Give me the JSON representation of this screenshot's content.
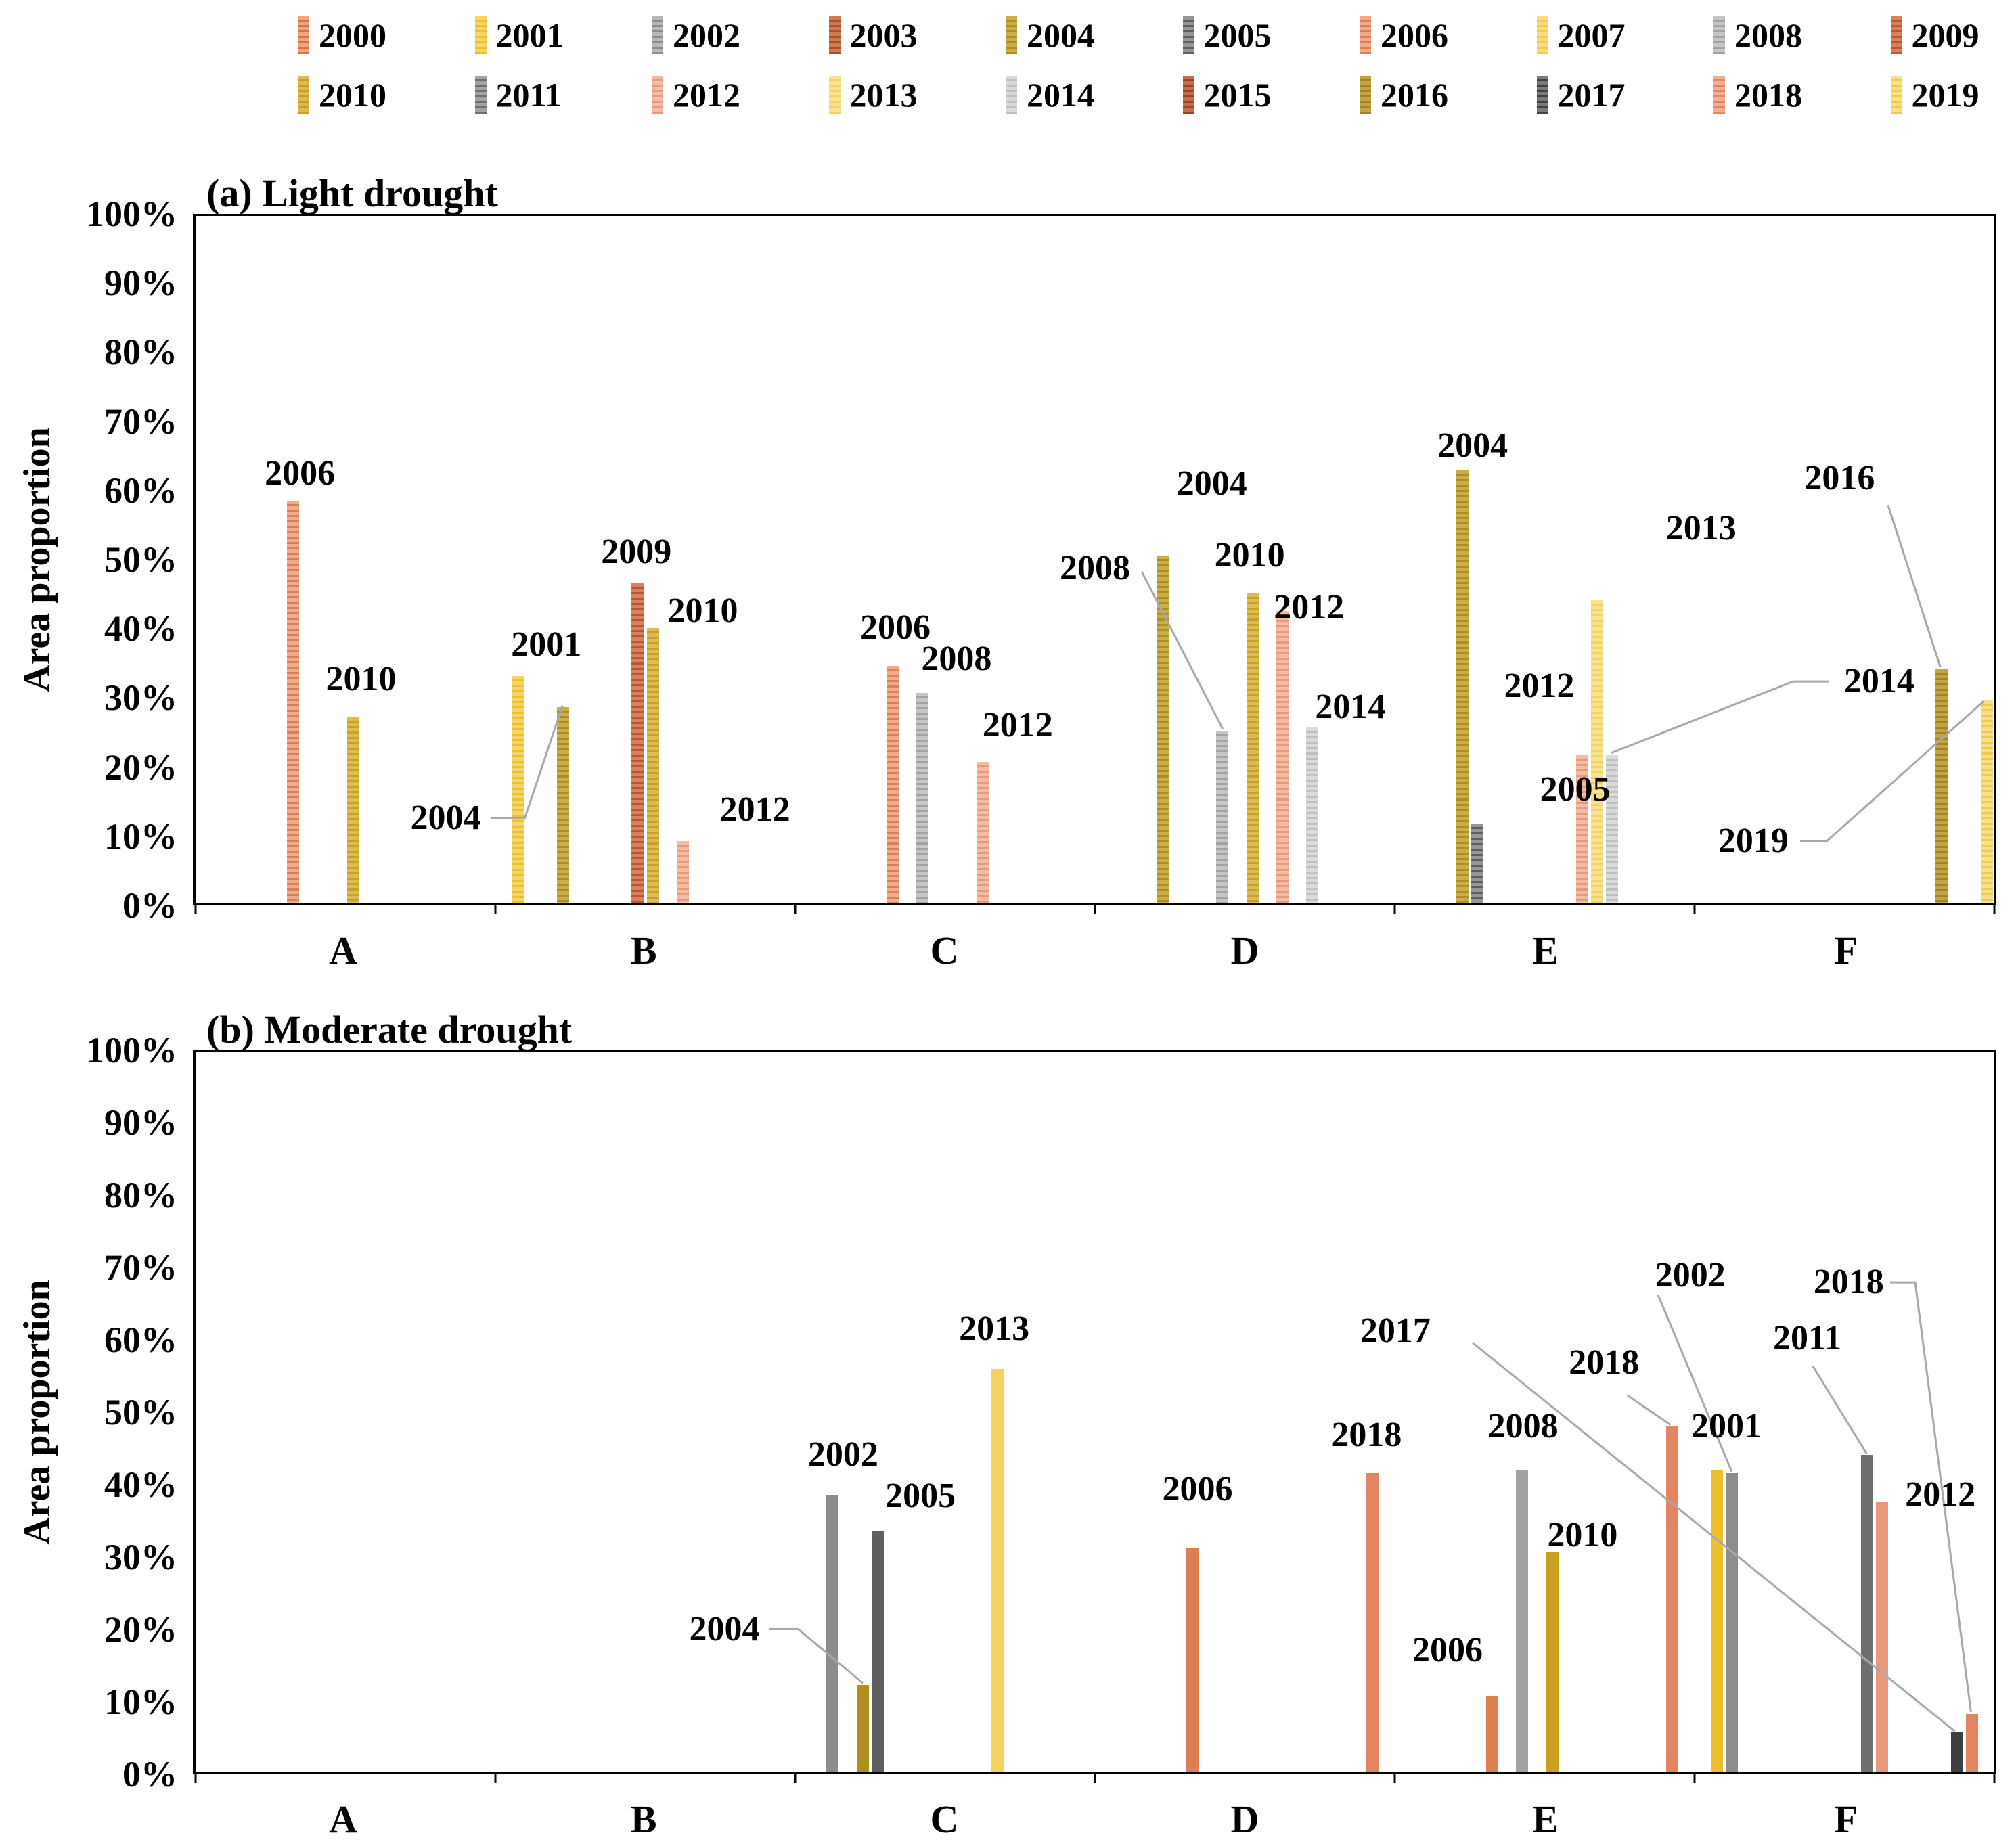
{
  "figure": {
    "background": "#FFFFFF",
    "axis_color": "#000000",
    "callout_line_color": "#A8A8A8",
    "text_color": "#000000"
  },
  "legend": {
    "rows": [
      [
        "2000",
        "2001",
        "2002",
        "2003",
        "2004",
        "2005",
        "2006",
        "2007",
        "2008",
        "2009"
      ],
      [
        "2010",
        "2011",
        "2012",
        "2013",
        "2014",
        "2015",
        "2016",
        "2017",
        "2018",
        "2019"
      ]
    ]
  },
  "palette": {
    "2000": {
      "fill": "#D96F43",
      "tint": "#ECA87E"
    },
    "2001": {
      "fill": "#EEBE2E",
      "tint": "#F6D569"
    },
    "2002": {
      "fill": "#8C8C8C",
      "tint": "#B9B9B9"
    },
    "2003": {
      "fill": "#AC4E28",
      "tint": "#CC7B54"
    },
    "2004": {
      "fill": "#B08E1E",
      "tint": "#CBAE4C"
    },
    "2005": {
      "fill": "#5F5F5F",
      "tint": "#969696"
    },
    "2006": {
      "fill": "#DD7E53",
      "tint": "#F0AC8B"
    },
    "2007": {
      "fill": "#F3CA4E",
      "tint": "#F8DD85"
    },
    "2008": {
      "fill": "#A2A2A2",
      "tint": "#C6C6C6"
    },
    "2009": {
      "fill": "#BC5530",
      "tint": "#D8825D"
    },
    "2010": {
      "fill": "#C9A01F",
      "tint": "#DDBC55"
    },
    "2011": {
      "fill": "#6F6F6F",
      "tint": "#A3A3A3"
    },
    "2012": {
      "fill": "#E8997B",
      "tint": "#F3BCA4"
    },
    "2013": {
      "fill": "#F5D15E",
      "tint": "#F9E294"
    },
    "2014": {
      "fill": "#BFBFBF",
      "tint": "#DADADA"
    },
    "2015": {
      "fill": "#9C4423",
      "tint": "#C26E48"
    },
    "2016": {
      "fill": "#A3831A",
      "tint": "#C1A448"
    },
    "2017": {
      "fill": "#3F3F3F",
      "tint": "#7A7A7A"
    },
    "2018": {
      "fill": "#E28560",
      "tint": "#F0B093"
    },
    "2019": {
      "fill": "#F0CB4A",
      "tint": "#F7DF8C"
    }
  },
  "chart_data": [
    {
      "type": "bar",
      "panel": "a",
      "title": "(a) Light drought",
      "ylabel": "Area proportion",
      "categories": [
        "A",
        "B",
        "C",
        "D",
        "E",
        "F"
      ],
      "ylim": [
        0,
        100
      ],
      "yticks": [
        "100%",
        "90%",
        "80%",
        "70%",
        "60%",
        "50%",
        "40%",
        "30%",
        "20%",
        "10%",
        "0%"
      ],
      "grid": false,
      "bar_style": "striped",
      "bars": [
        {
          "category": "A",
          "year": "2006",
          "value": 58.5
        },
        {
          "category": "A",
          "year": "2010",
          "value": 27
        },
        {
          "category": "B",
          "year": "2001",
          "value": 33
        },
        {
          "category": "B",
          "year": "2004",
          "value": 28.5
        },
        {
          "category": "B",
          "year": "2009",
          "value": 46.5
        },
        {
          "category": "B",
          "year": "2010",
          "value": 40
        },
        {
          "category": "B",
          "year": "2012",
          "value": 9
        },
        {
          "category": "C",
          "year": "2006",
          "value": 34.5
        },
        {
          "category": "C",
          "year": "2008",
          "value": 30.5
        },
        {
          "category": "C",
          "year": "2012",
          "value": 20.5
        },
        {
          "category": "D",
          "year": "2004",
          "value": 50.5
        },
        {
          "category": "D",
          "year": "2008",
          "value": 25
        },
        {
          "category": "D",
          "year": "2010",
          "value": 45
        },
        {
          "category": "D",
          "year": "2012",
          "value": 42.5
        },
        {
          "category": "D",
          "year": "2014",
          "value": 25.5
        },
        {
          "category": "E",
          "year": "2004",
          "value": 63
        },
        {
          "category": "E",
          "year": "2005",
          "value": 11.5
        },
        {
          "category": "E",
          "year": "2012",
          "value": 21.5
        },
        {
          "category": "E",
          "year": "2013",
          "value": 44
        },
        {
          "category": "E",
          "year": "2014",
          "value": 21.5
        },
        {
          "category": "F",
          "year": "2016",
          "value": 34
        },
        {
          "category": "F",
          "year": "2019",
          "value": 29.5
        }
      ],
      "annotations": [
        {
          "text": "2006",
          "x_pct": 5.8,
          "value_pct": 62.5
        },
        {
          "text": "2010",
          "x_pct": 9.2,
          "value_pct": 32.5
        },
        {
          "text": "2001",
          "x_pct": 19.5,
          "value_pct": 37.5
        },
        {
          "text": "2004",
          "x_pct": 13.9,
          "value_pct": 12.3,
          "line_pct": [
            [
              16.4,
              12.3
            ],
            [
              18.3,
              12.3
            ],
            [
              20.4,
              28.7
            ]
          ]
        },
        {
          "text": "2009",
          "x_pct": 24.5,
          "value_pct": 51.0
        },
        {
          "text": "2010",
          "x_pct": 28.2,
          "value_pct": 42.5
        },
        {
          "text": "2012",
          "x_pct": 31.1,
          "value_pct": 13.5
        },
        {
          "text": "2006",
          "x_pct": 38.9,
          "value_pct": 40.0
        },
        {
          "text": "2008",
          "x_pct": 42.3,
          "value_pct": 35.5
        },
        {
          "text": "2012",
          "x_pct": 45.7,
          "value_pct": 25.8
        },
        {
          "text": "2008",
          "x_pct": 50.0,
          "value_pct": 48.7,
          "line_pct": [
            [
              52.6,
              48.2
            ],
            [
              57.1,
              25.3
            ]
          ]
        },
        {
          "text": "2004",
          "x_pct": 56.5,
          "value_pct": 61.0
        },
        {
          "text": "2010",
          "x_pct": 58.6,
          "value_pct": 50.5
        },
        {
          "text": "2012",
          "x_pct": 61.9,
          "value_pct": 43.0
        },
        {
          "text": "2014",
          "x_pct": 64.2,
          "value_pct": 28.5
        },
        {
          "text": "2004",
          "x_pct": 71.0,
          "value_pct": 66.5
        },
        {
          "text": "2012",
          "x_pct": 74.7,
          "value_pct": 31.5
        },
        {
          "text": "2005",
          "x_pct": 76.7,
          "value_pct": 16.5
        },
        {
          "text": "2013",
          "x_pct": 83.7,
          "value_pct": 54.5
        },
        {
          "text": "2014",
          "x_pct": 93.6,
          "value_pct": 32.2,
          "line_pct": [
            [
              90.8,
              32.2
            ],
            [
              88.8,
              32.2
            ],
            [
              78.7,
              21.8
            ]
          ]
        },
        {
          "text": "2016",
          "x_pct": 91.4,
          "value_pct": 61.8,
          "line_pct": [
            [
              94.1,
              57.8
            ],
            [
              97.0,
              34.3
            ]
          ]
        },
        {
          "text": "2019",
          "x_pct": 86.6,
          "value_pct": 9.0,
          "line_pct": [
            [
              89.2,
              9.0
            ],
            [
              90.7,
              9.0
            ],
            [
              99.4,
              29.3
            ]
          ]
        }
      ]
    },
    {
      "type": "bar",
      "panel": "b",
      "title": "(b) Moderate drought",
      "ylabel": "Area proportion",
      "categories": [
        "A",
        "B",
        "C",
        "D",
        "E",
        "F"
      ],
      "ylim": [
        0,
        100
      ],
      "yticks": [
        "100%",
        "90%",
        "80%",
        "70%",
        "60%",
        "50%",
        "40%",
        "30%",
        "20%",
        "10%",
        "0%"
      ],
      "grid": false,
      "bar_style": "solid",
      "bars": [
        {
          "category": "C",
          "year": "2002",
          "value": 38.5
        },
        {
          "category": "C",
          "year": "2004",
          "value": 12
        },
        {
          "category": "C",
          "year": "2005",
          "value": 33.5
        },
        {
          "category": "C",
          "year": "2013",
          "value": 56
        },
        {
          "category": "D",
          "year": "2006",
          "value": 31
        },
        {
          "category": "D",
          "year": "2018",
          "value": 41.5
        },
        {
          "category": "E",
          "year": "2006",
          "value": 10.5
        },
        {
          "category": "E",
          "year": "2008",
          "value": 42
        },
        {
          "category": "E",
          "year": "2010",
          "value": 30.5
        },
        {
          "category": "E",
          "year": "2018",
          "value": 48
        },
        {
          "category": "F",
          "year": "2001",
          "value": 42
        },
        {
          "category": "F",
          "year": "2002",
          "value": 41.5
        },
        {
          "category": "F",
          "year": "2011",
          "value": 44
        },
        {
          "category": "F",
          "year": "2012",
          "value": 37.5
        },
        {
          "category": "F",
          "year": "2017",
          "value": 5.5
        },
        {
          "category": "F",
          "year": "2018",
          "value": 8
        }
      ],
      "annotations": [
        {
          "text": "2002",
          "x_pct": 36.0,
          "value_pct": 44.0
        },
        {
          "text": "2004",
          "x_pct": 29.4,
          "value_pct": 19.8,
          "line_pct": [
            [
              31.9,
              19.8
            ],
            [
              33.5,
              19.8
            ],
            [
              37.1,
              12.3
            ]
          ]
        },
        {
          "text": "2005",
          "x_pct": 40.3,
          "value_pct": 38.3
        },
        {
          "text": "2013",
          "x_pct": 44.4,
          "value_pct": 61.5
        },
        {
          "text": "2006",
          "x_pct": 55.7,
          "value_pct": 39.2
        },
        {
          "text": "2018",
          "x_pct": 65.1,
          "value_pct": 46.8
        },
        {
          "text": "2006",
          "x_pct": 69.6,
          "value_pct": 16.8
        },
        {
          "text": "2008",
          "x_pct": 73.8,
          "value_pct": 48.0
        },
        {
          "text": "2010",
          "x_pct": 77.1,
          "value_pct": 32.8
        },
        {
          "text": "2017",
          "x_pct": 66.7,
          "value_pct": 61.2,
          "line_pct": [
            [
              71.0,
              59.6
            ],
            [
              97.8,
              5.6
            ]
          ]
        },
        {
          "text": "2018",
          "x_pct": 78.3,
          "value_pct": 56.8,
          "line_pct": [
            [
              79.6,
              52.3
            ],
            [
              82.0,
              48.2
            ]
          ]
        },
        {
          "text": "2002",
          "x_pct": 83.1,
          "value_pct": 69.0,
          "line_pct": [
            [
              81.3,
              66.3
            ],
            [
              85.4,
              41.7
            ]
          ]
        },
        {
          "text": "2001",
          "x_pct": 85.1,
          "value_pct": 48.0
        },
        {
          "text": "2011",
          "x_pct": 89.6,
          "value_pct": 60.2,
          "line_pct": [
            [
              89.9,
              56.4
            ],
            [
              92.9,
              44.2
            ]
          ]
        },
        {
          "text": "2012",
          "x_pct": 97.0,
          "value_pct": 38.5
        },
        {
          "text": "2018",
          "x_pct": 91.9,
          "value_pct": 68.0,
          "line_pct": [
            [
              94.2,
              68.0
            ],
            [
              95.6,
              68.0
            ],
            [
              98.7,
              8.3
            ]
          ]
        }
      ]
    }
  ]
}
